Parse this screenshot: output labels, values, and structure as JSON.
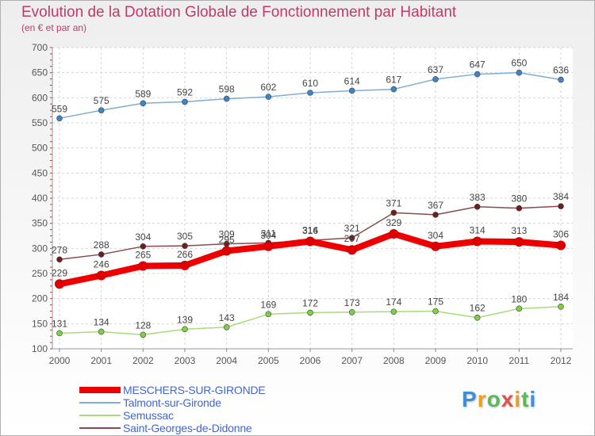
{
  "header": {
    "title": "Evolution de la Dotation Globale de Fonctionnement par Habitant",
    "subtitle": "(en € et par an)"
  },
  "logo": {
    "text": "Proxiti",
    "letters": [
      "P",
      "r",
      "o",
      "x",
      "i",
      "t",
      "i"
    ]
  },
  "chart_data": {
    "type": "line",
    "title": "Evolution de la Dotation Globale de Fonctionnement par Habitant",
    "ylabel": "(en € et par an)",
    "xlabel": "",
    "ylim": [
      100,
      700
    ],
    "y_ticks": [
      "100",
      "150",
      "200",
      "250",
      "300",
      "350",
      "400",
      "450",
      "500",
      "550",
      "600",
      "650",
      "700"
    ],
    "categories": [
      "2000",
      "2001",
      "2002",
      "2003",
      "2004",
      "2005",
      "2006",
      "2007",
      "2008",
      "2009",
      "2010",
      "2011",
      "2012"
    ],
    "grid": true,
    "legend_position": "bottom-left",
    "series": [
      {
        "name": "MESCHERS-SUR-GIRONDE",
        "color": "#ee0000",
        "marker": "#e00000",
        "thick": true,
        "values": [
          229,
          246,
          265,
          266,
          295,
          304,
          314,
          297,
          329,
          304,
          314,
          313,
          306
        ]
      },
      {
        "name": "Talmont-sur-Gironde",
        "color": "#7eadd6",
        "marker": "#3f84c4",
        "thick": false,
        "values": [
          559,
          575,
          589,
          592,
          598,
          602,
          610,
          614,
          617,
          637,
          647,
          650,
          636
        ]
      },
      {
        "name": "Semussac",
        "color": "#a8dc78",
        "marker": "#7dcf45",
        "thick": false,
        "values": [
          131,
          134,
          128,
          139,
          143,
          169,
          172,
          173,
          174,
          175,
          162,
          180,
          184
        ]
      },
      {
        "name": "Saint-Georges-de-Didonne",
        "color": "#8a4a4a",
        "marker": "#6b1f1f",
        "thick": false,
        "values": [
          278,
          288,
          304,
          305,
          309,
          311,
          316,
          321,
          371,
          367,
          383,
          380,
          384
        ]
      }
    ]
  }
}
